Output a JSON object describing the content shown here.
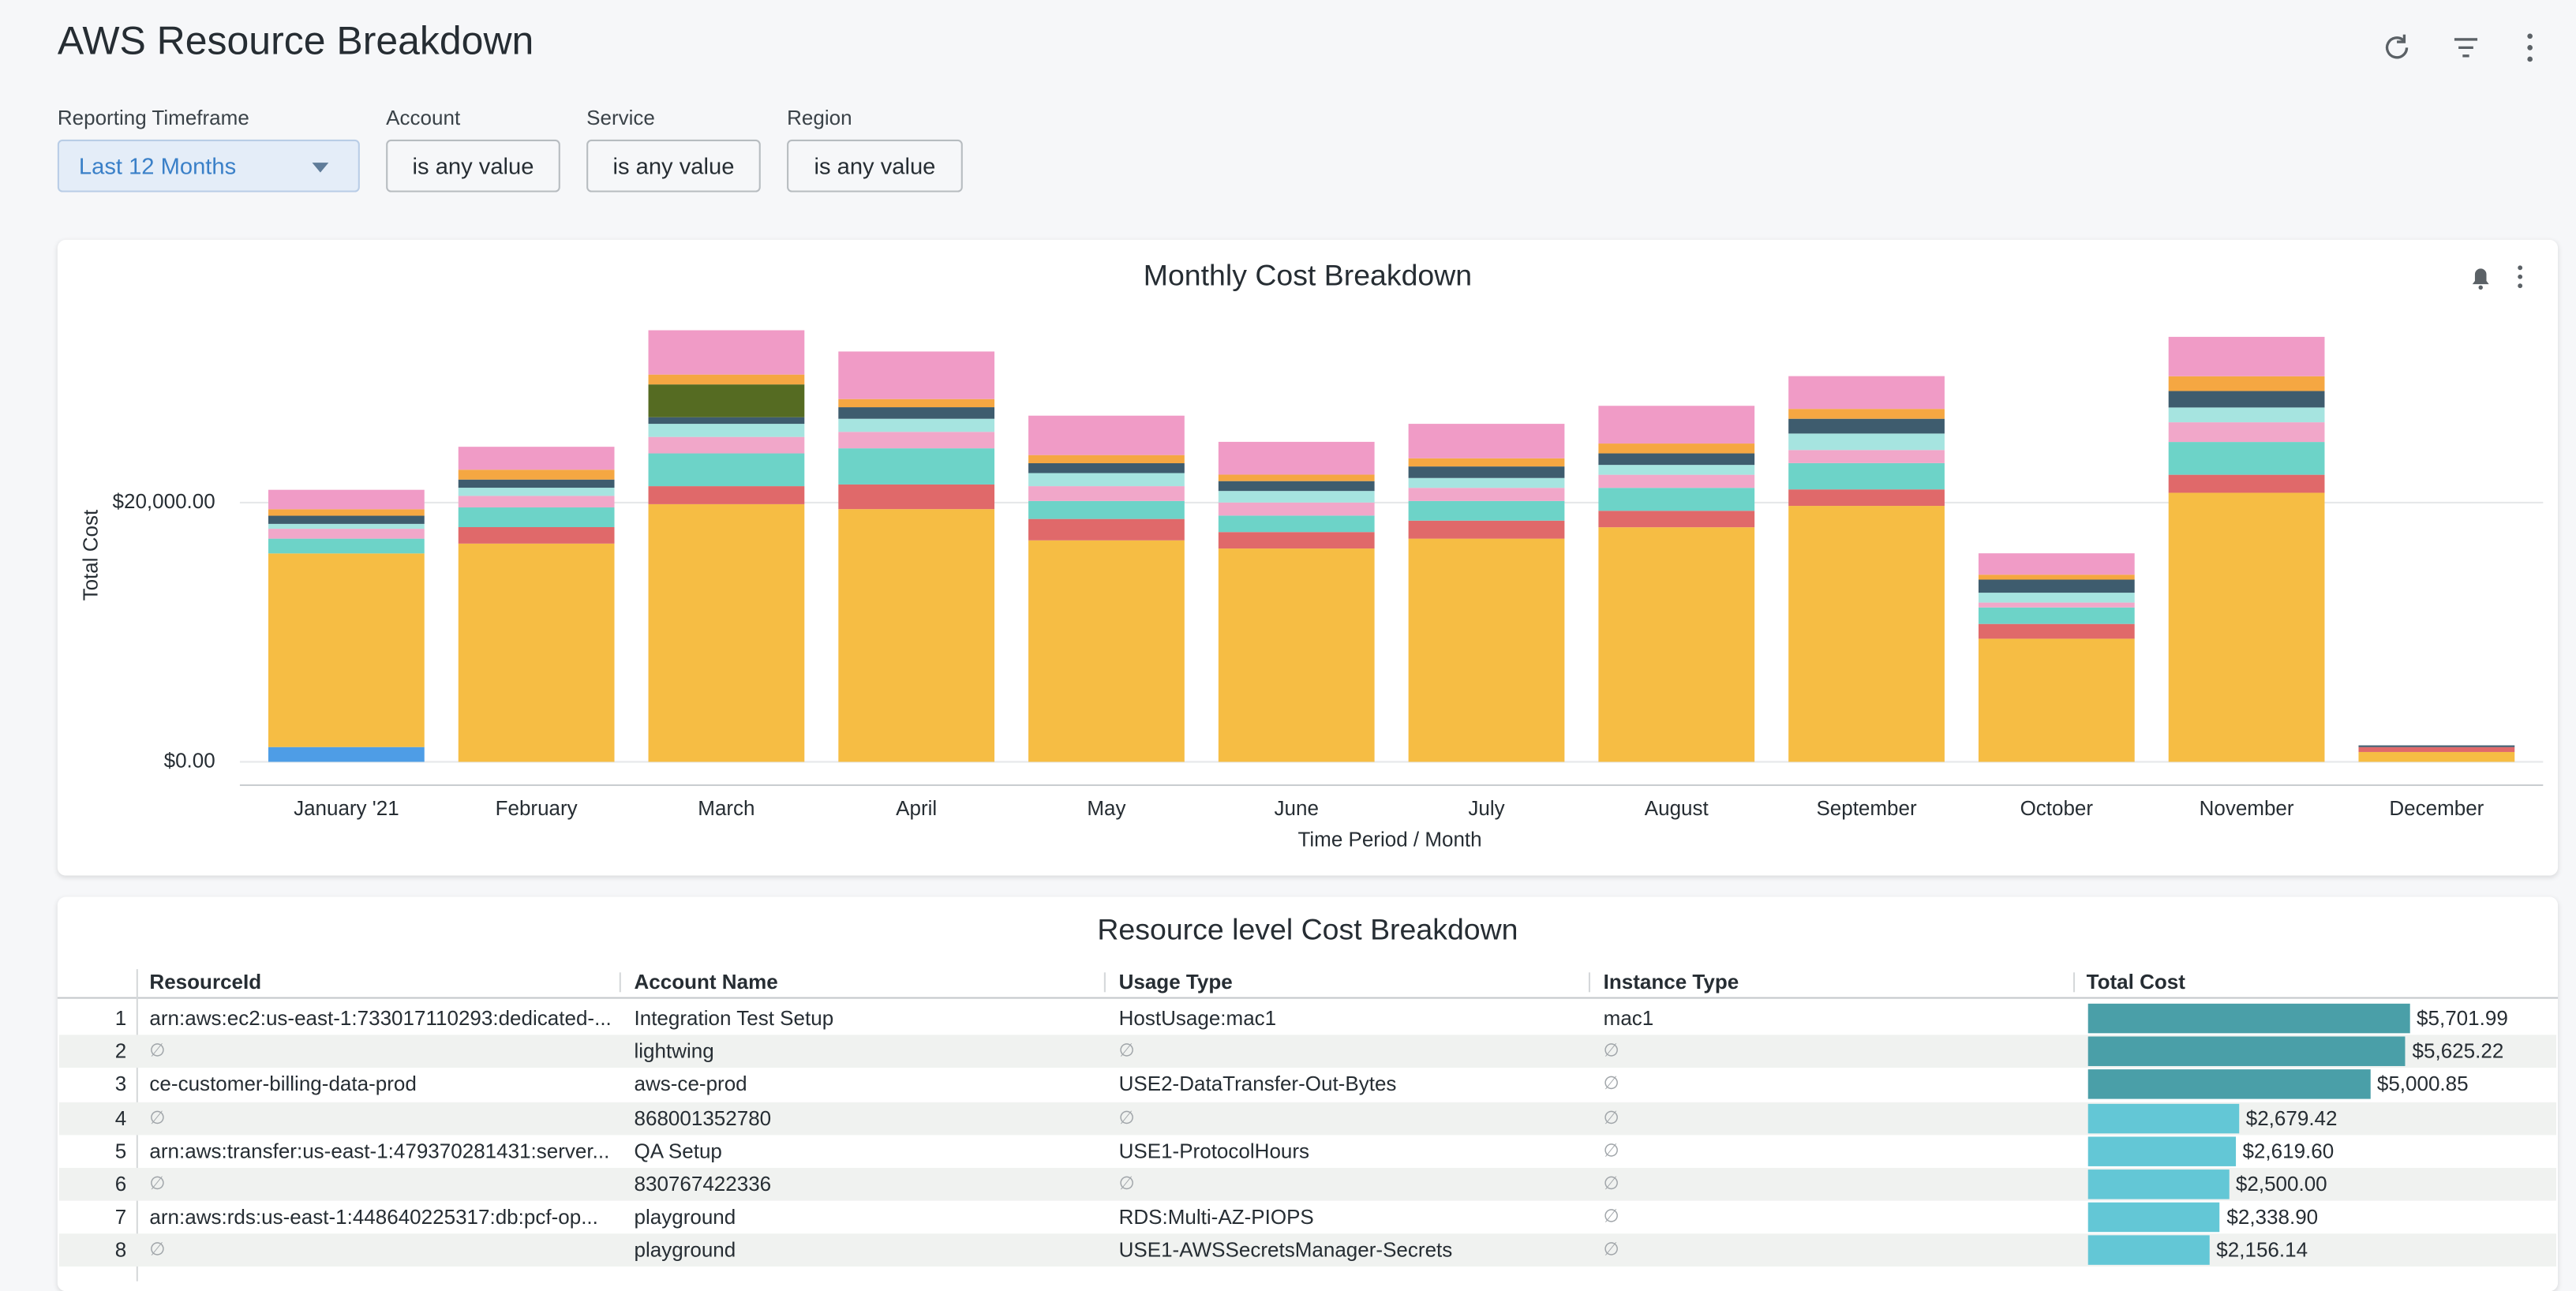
{
  "header": {
    "title": "AWS Resource Breakdown"
  },
  "filters": [
    {
      "label": "Reporting Timeframe",
      "value": "Last 12 Months"
    },
    {
      "label": "Account",
      "value": "is any value"
    },
    {
      "label": "Service",
      "value": "is any value"
    },
    {
      "label": "Region",
      "value": "is any value"
    }
  ],
  "chart_data": {
    "type": "bar",
    "stacked": true,
    "title": "Monthly Cost Breakdown",
    "y_label": "Total Cost",
    "x_label": "Time Period / Month",
    "categories": [
      "January '21",
      "February",
      "March",
      "April",
      "May",
      "June",
      "July",
      "August",
      "September",
      "October",
      "November",
      "December"
    ],
    "series": [
      {
        "color": "#4e9de6",
        "values": [
          1140,
          0,
          0,
          0,
          0,
          0,
          0,
          0,
          0,
          0,
          0,
          0
        ]
      },
      {
        "color": "#f6bd44",
        "values": [
          14940,
          16840,
          19880,
          19500,
          17090,
          16460,
          17220,
          18100,
          19750,
          9500,
          20760,
          760
        ]
      },
      {
        "color": "#e0696a",
        "values": [
          0,
          1270,
          1390,
          1900,
          1650,
          1270,
          1390,
          1270,
          1270,
          1140,
          1390,
          380
        ]
      },
      {
        "color": "#6dd3c8",
        "values": [
          1140,
          1520,
          2530,
          2790,
          1390,
          1270,
          1520,
          1770,
          2030,
          1270,
          2530,
          0
        ]
      },
      {
        "color": "#f1a7c9",
        "values": [
          760,
          890,
          1270,
          1270,
          1140,
          1010,
          1010,
          1010,
          1010,
          380,
          1520,
          0
        ]
      },
      {
        "color": "#a6e4e0",
        "values": [
          380,
          630,
          1010,
          1010,
          1010,
          890,
          760,
          760,
          1270,
          760,
          1140,
          0
        ]
      },
      {
        "color": "#3e5c6e",
        "values": [
          630,
          630,
          510,
          890,
          760,
          760,
          890,
          890,
          1140,
          1010,
          1270,
          130
        ]
      },
      {
        "color": "#556b22",
        "values": [
          0,
          0,
          2530,
          0,
          0,
          0,
          0,
          0,
          0,
          0,
          0,
          0
        ]
      },
      {
        "color": "#f5a742",
        "values": [
          500,
          760,
          760,
          630,
          630,
          500,
          630,
          760,
          760,
          380,
          1140,
          0
        ]
      },
      {
        "color": "#f09bc6",
        "values": [
          1500,
          1770,
          3420,
          3670,
          3040,
          2530,
          2660,
          2910,
          2530,
          1650,
          3040,
          0
        ]
      }
    ],
    "ylim": [
      -1800,
      34700
    ],
    "yticks": [
      {
        "value": 0,
        "label": "$0.00"
      },
      {
        "value": 20000,
        "label": "$20,000.00"
      }
    ],
    "grid": true
  },
  "table": {
    "title": "Resource level Cost Breakdown",
    "columns": [
      "ResourceId",
      "Account Name",
      "Usage Type",
      "Instance Type",
      "Total Cost"
    ],
    "rows": [
      {
        "index": 1,
        "cells": [
          "arn:aws:ec2:us-east-1:733017110293:dedicated-...",
          "Integration Test Setup",
          "HostUsage:mac1",
          "mac1"
        ],
        "cost": {
          "value": 5701.99,
          "label": "$5,701.99"
        }
      },
      {
        "index": 2,
        "cells": [
          "∅",
          "lightwing",
          "∅",
          "∅"
        ],
        "cost": {
          "value": 5625.22,
          "label": "$5,625.22"
        }
      },
      {
        "index": 3,
        "cells": [
          "ce-customer-billing-data-prod",
          "aws-ce-prod",
          "USE2-DataTransfer-Out-Bytes",
          "∅"
        ],
        "cost": {
          "value": 5000.85,
          "label": "$5,000.85"
        }
      },
      {
        "index": 4,
        "cells": [
          "∅",
          "868001352780",
          "∅",
          "∅"
        ],
        "cost": {
          "value": 2679.42,
          "label": "$2,679.42"
        }
      },
      {
        "index": 5,
        "cells": [
          "arn:aws:transfer:us-east-1:479370281431:server...",
          "QA Setup",
          "USE1-ProtocolHours",
          "∅"
        ],
        "cost": {
          "value": 2619.6,
          "label": "$2,619.60"
        }
      },
      {
        "index": 6,
        "cells": [
          "∅",
          "830767422336",
          "∅",
          "∅"
        ],
        "cost": {
          "value": 2500.0,
          "label": "$2,500.00"
        }
      },
      {
        "index": 7,
        "cells": [
          "arn:aws:rds:us-east-1:448640225317:db:pcf-op...",
          "playground",
          "RDS:Multi-AZ-PIOPS",
          "∅"
        ],
        "cost": {
          "value": 2338.9,
          "label": "$2,338.90"
        }
      },
      {
        "index": 8,
        "cells": [
          "∅",
          "playground",
          "USE1-AWSSecretsManager-Secrets",
          "∅"
        ],
        "cost": {
          "value": 2156.14,
          "label": "$2,156.14"
        }
      }
    ]
  }
}
